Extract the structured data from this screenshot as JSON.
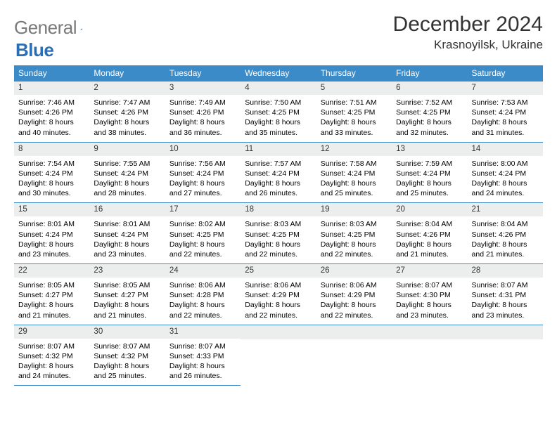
{
  "logo": {
    "textGray": "General",
    "textBlue": "Blue"
  },
  "title": "December 2024",
  "location": "Krasnoyilsk, Ukraine",
  "colors": {
    "headerBlue": "#3b8bc9",
    "logoGray": "#7a7a7a",
    "logoBlue": "#2a6fb5",
    "dayBg": "#eceded",
    "border": "#3b8bc9"
  },
  "weekdays": [
    "Sunday",
    "Monday",
    "Tuesday",
    "Wednesday",
    "Thursday",
    "Friday",
    "Saturday"
  ],
  "weeks": [
    [
      {
        "n": "1",
        "sr": "Sunrise: 7:46 AM",
        "ss": "Sunset: 4:26 PM",
        "dl1": "Daylight: 8 hours",
        "dl2": "and 40 minutes."
      },
      {
        "n": "2",
        "sr": "Sunrise: 7:47 AM",
        "ss": "Sunset: 4:26 PM",
        "dl1": "Daylight: 8 hours",
        "dl2": "and 38 minutes."
      },
      {
        "n": "3",
        "sr": "Sunrise: 7:49 AM",
        "ss": "Sunset: 4:26 PM",
        "dl1": "Daylight: 8 hours",
        "dl2": "and 36 minutes."
      },
      {
        "n": "4",
        "sr": "Sunrise: 7:50 AM",
        "ss": "Sunset: 4:25 PM",
        "dl1": "Daylight: 8 hours",
        "dl2": "and 35 minutes."
      },
      {
        "n": "5",
        "sr": "Sunrise: 7:51 AM",
        "ss": "Sunset: 4:25 PM",
        "dl1": "Daylight: 8 hours",
        "dl2": "and 33 minutes."
      },
      {
        "n": "6",
        "sr": "Sunrise: 7:52 AM",
        "ss": "Sunset: 4:25 PM",
        "dl1": "Daylight: 8 hours",
        "dl2": "and 32 minutes."
      },
      {
        "n": "7",
        "sr": "Sunrise: 7:53 AM",
        "ss": "Sunset: 4:24 PM",
        "dl1": "Daylight: 8 hours",
        "dl2": "and 31 minutes."
      }
    ],
    [
      {
        "n": "8",
        "sr": "Sunrise: 7:54 AM",
        "ss": "Sunset: 4:24 PM",
        "dl1": "Daylight: 8 hours",
        "dl2": "and 30 minutes."
      },
      {
        "n": "9",
        "sr": "Sunrise: 7:55 AM",
        "ss": "Sunset: 4:24 PM",
        "dl1": "Daylight: 8 hours",
        "dl2": "and 28 minutes."
      },
      {
        "n": "10",
        "sr": "Sunrise: 7:56 AM",
        "ss": "Sunset: 4:24 PM",
        "dl1": "Daylight: 8 hours",
        "dl2": "and 27 minutes."
      },
      {
        "n": "11",
        "sr": "Sunrise: 7:57 AM",
        "ss": "Sunset: 4:24 PM",
        "dl1": "Daylight: 8 hours",
        "dl2": "and 26 minutes."
      },
      {
        "n": "12",
        "sr": "Sunrise: 7:58 AM",
        "ss": "Sunset: 4:24 PM",
        "dl1": "Daylight: 8 hours",
        "dl2": "and 25 minutes."
      },
      {
        "n": "13",
        "sr": "Sunrise: 7:59 AM",
        "ss": "Sunset: 4:24 PM",
        "dl1": "Daylight: 8 hours",
        "dl2": "and 25 minutes."
      },
      {
        "n": "14",
        "sr": "Sunrise: 8:00 AM",
        "ss": "Sunset: 4:24 PM",
        "dl1": "Daylight: 8 hours",
        "dl2": "and 24 minutes."
      }
    ],
    [
      {
        "n": "15",
        "sr": "Sunrise: 8:01 AM",
        "ss": "Sunset: 4:24 PM",
        "dl1": "Daylight: 8 hours",
        "dl2": "and 23 minutes."
      },
      {
        "n": "16",
        "sr": "Sunrise: 8:01 AM",
        "ss": "Sunset: 4:24 PM",
        "dl1": "Daylight: 8 hours",
        "dl2": "and 23 minutes."
      },
      {
        "n": "17",
        "sr": "Sunrise: 8:02 AM",
        "ss": "Sunset: 4:25 PM",
        "dl1": "Daylight: 8 hours",
        "dl2": "and 22 minutes."
      },
      {
        "n": "18",
        "sr": "Sunrise: 8:03 AM",
        "ss": "Sunset: 4:25 PM",
        "dl1": "Daylight: 8 hours",
        "dl2": "and 22 minutes."
      },
      {
        "n": "19",
        "sr": "Sunrise: 8:03 AM",
        "ss": "Sunset: 4:25 PM",
        "dl1": "Daylight: 8 hours",
        "dl2": "and 22 minutes."
      },
      {
        "n": "20",
        "sr": "Sunrise: 8:04 AM",
        "ss": "Sunset: 4:26 PM",
        "dl1": "Daylight: 8 hours",
        "dl2": "and 21 minutes."
      },
      {
        "n": "21",
        "sr": "Sunrise: 8:04 AM",
        "ss": "Sunset: 4:26 PM",
        "dl1": "Daylight: 8 hours",
        "dl2": "and 21 minutes."
      }
    ],
    [
      {
        "n": "22",
        "sr": "Sunrise: 8:05 AM",
        "ss": "Sunset: 4:27 PM",
        "dl1": "Daylight: 8 hours",
        "dl2": "and 21 minutes."
      },
      {
        "n": "23",
        "sr": "Sunrise: 8:05 AM",
        "ss": "Sunset: 4:27 PM",
        "dl1": "Daylight: 8 hours",
        "dl2": "and 21 minutes."
      },
      {
        "n": "24",
        "sr": "Sunrise: 8:06 AM",
        "ss": "Sunset: 4:28 PM",
        "dl1": "Daylight: 8 hours",
        "dl2": "and 22 minutes."
      },
      {
        "n": "25",
        "sr": "Sunrise: 8:06 AM",
        "ss": "Sunset: 4:29 PM",
        "dl1": "Daylight: 8 hours",
        "dl2": "and 22 minutes."
      },
      {
        "n": "26",
        "sr": "Sunrise: 8:06 AM",
        "ss": "Sunset: 4:29 PM",
        "dl1": "Daylight: 8 hours",
        "dl2": "and 22 minutes."
      },
      {
        "n": "27",
        "sr": "Sunrise: 8:07 AM",
        "ss": "Sunset: 4:30 PM",
        "dl1": "Daylight: 8 hours",
        "dl2": "and 23 minutes."
      },
      {
        "n": "28",
        "sr": "Sunrise: 8:07 AM",
        "ss": "Sunset: 4:31 PM",
        "dl1": "Daylight: 8 hours",
        "dl2": "and 23 minutes."
      }
    ],
    [
      {
        "n": "29",
        "sr": "Sunrise: 8:07 AM",
        "ss": "Sunset: 4:32 PM",
        "dl1": "Daylight: 8 hours",
        "dl2": "and 24 minutes."
      },
      {
        "n": "30",
        "sr": "Sunrise: 8:07 AM",
        "ss": "Sunset: 4:32 PM",
        "dl1": "Daylight: 8 hours",
        "dl2": "and 25 minutes."
      },
      {
        "n": "31",
        "sr": "Sunrise: 8:07 AM",
        "ss": "Sunset: 4:33 PM",
        "dl1": "Daylight: 8 hours",
        "dl2": "and 26 minutes."
      },
      {
        "empty": true
      },
      {
        "empty": true
      },
      {
        "empty": true
      },
      {
        "empty": true
      }
    ]
  ]
}
